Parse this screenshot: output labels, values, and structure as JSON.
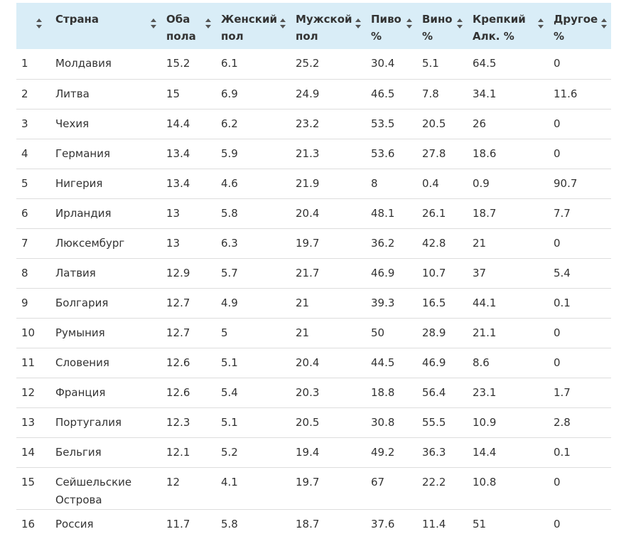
{
  "table": {
    "headers": [
      {
        "key": "rank",
        "label": ""
      },
      {
        "key": "country",
        "label": "Страна"
      },
      {
        "key": "both",
        "label": "Оба пола"
      },
      {
        "key": "female",
        "label": "Женский пол"
      },
      {
        "key": "male",
        "label": "Мужской пол"
      },
      {
        "key": "beer",
        "label": "Пиво %"
      },
      {
        "key": "wine",
        "label": "Вино %"
      },
      {
        "key": "spirits",
        "label": "Крепкий Алк. %"
      },
      {
        "key": "other",
        "label": "Другое %"
      }
    ],
    "rows": [
      [
        "1",
        "Молдавия",
        "15.2",
        "6.1",
        "25.2",
        "30.4",
        "5.1",
        "64.5",
        "0"
      ],
      [
        "2",
        "Литва",
        "15",
        "6.9",
        "24.9",
        "46.5",
        "7.8",
        "34.1",
        "11.6"
      ],
      [
        "3",
        "Чехия",
        "14.4",
        "6.2",
        "23.2",
        "53.5",
        "20.5",
        "26",
        "0"
      ],
      [
        "4",
        "Германия",
        "13.4",
        "5.9",
        "21.3",
        "53.6",
        "27.8",
        "18.6",
        "0"
      ],
      [
        "5",
        "Нигерия",
        "13.4",
        "4.6",
        "21.9",
        "8",
        "0.4",
        "0.9",
        "90.7"
      ],
      [
        "6",
        "Ирландия",
        "13",
        "5.8",
        "20.4",
        "48.1",
        "26.1",
        "18.7",
        "7.7"
      ],
      [
        "7",
        "Люксембург",
        "13",
        "6.3",
        "19.7",
        "36.2",
        "42.8",
        "21",
        "0"
      ],
      [
        "8",
        "Латвия",
        "12.9",
        "5.7",
        "21.7",
        "46.9",
        "10.7",
        "37",
        "5.4"
      ],
      [
        "9",
        "Болгария",
        "12.7",
        "4.9",
        "21",
        "39.3",
        "16.5",
        "44.1",
        "0.1"
      ],
      [
        "10",
        "Румыния",
        "12.7",
        "5",
        "21",
        "50",
        "28.9",
        "21.1",
        "0"
      ],
      [
        "11",
        "Словения",
        "12.6",
        "5.1",
        "20.4",
        "44.5",
        "46.9",
        "8.6",
        "0"
      ],
      [
        "12",
        "Франция",
        "12.6",
        "5.4",
        "20.3",
        "18.8",
        "56.4",
        "23.1",
        "1.7"
      ],
      [
        "13",
        "Португалия",
        "12.3",
        "5.1",
        "20.5",
        "30.8",
        "55.5",
        "10.9",
        "2.8"
      ],
      [
        "14",
        "Бельгия",
        "12.1",
        "5.2",
        "19.4",
        "49.2",
        "36.3",
        "14.4",
        "0.1"
      ],
      [
        "15",
        "Сейшельские Острова",
        "12",
        "4.1",
        "19.7",
        "67",
        "22.2",
        "10.8",
        "0"
      ],
      [
        "16",
        "Россия",
        "11.7",
        "5.8",
        "18.7",
        "37.6",
        "11.4",
        "51",
        "0"
      ]
    ]
  },
  "colors": {
    "header_bg": "#d9edf7",
    "row_border": "#dddddd",
    "text": "#333333",
    "sort_icon": "#555555"
  },
  "icons": {
    "sort": "sort-updown-icon"
  }
}
